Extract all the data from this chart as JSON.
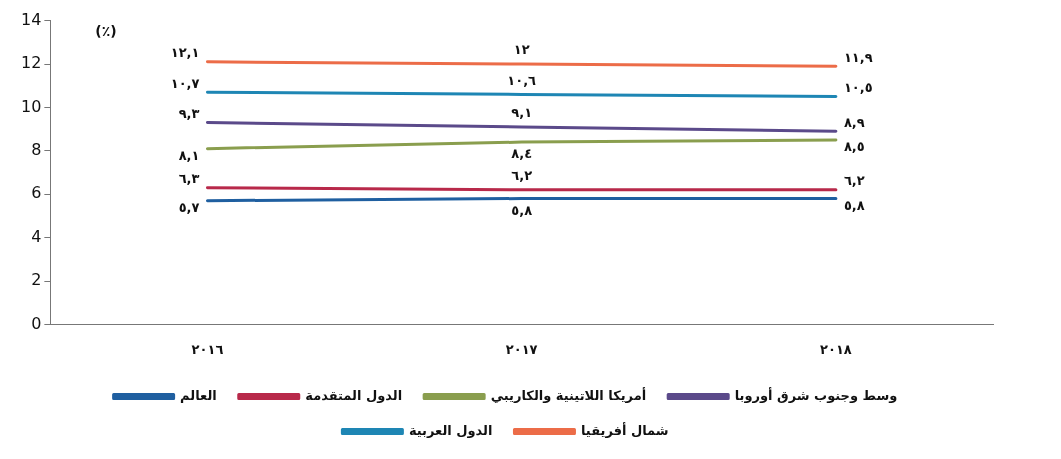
{
  "chart_data": {
    "type": "line",
    "categories": [
      "٢٠١٦",
      "٢٠١٧",
      "٢٠١٨"
    ],
    "series": [
      {
        "name": "العالم",
        "color": "#1f5fa0",
        "values": [
          5.7,
          5.8,
          5.8
        ],
        "value_labels": [
          "٥,٧",
          "٥,٨",
          "٥,٨"
        ]
      },
      {
        "name": "الدول المتقدمة",
        "color": "#b8294a",
        "values": [
          6.3,
          6.2,
          6.2
        ],
        "value_labels": [
          "٦,٣",
          "٦,٢",
          "٦,٢"
        ]
      },
      {
        "name": "أمريكا اللاتينية والكاريبي",
        "color": "#8a9e4e",
        "values": [
          8.1,
          8.4,
          8.5
        ],
        "value_labels": [
          "٨,١",
          "٨,٤",
          "٨,٥"
        ]
      },
      {
        "name": "وسط وجنوب شرق أوروبا",
        "color": "#5b4a8a",
        "values": [
          9.3,
          9.1,
          8.9
        ],
        "value_labels": [
          "٩,٣",
          "٩,١",
          "٨,٩"
        ]
      },
      {
        "name": "الدول العربية",
        "color": "#1e86b4",
        "values": [
          10.7,
          10.6,
          10.5
        ],
        "value_labels": [
          "١٠,٧",
          "١٠,٦",
          "١٠,٥"
        ]
      },
      {
        "name": "شمال أفريقيا",
        "color": "#ec6c48",
        "values": [
          12.1,
          12,
          11.9
        ],
        "value_labels": [
          "١٢,١",
          "١٢",
          "١١,٩"
        ]
      }
    ],
    "ylim": [
      0,
      14
    ],
    "yticks": [
      0,
      2,
      4,
      6,
      8,
      10,
      12,
      14
    ],
    "grid": false,
    "legend": "bottom",
    "marker": "none",
    "line_style": "solid",
    "annotations": [
      "(٪)"
    ]
  }
}
